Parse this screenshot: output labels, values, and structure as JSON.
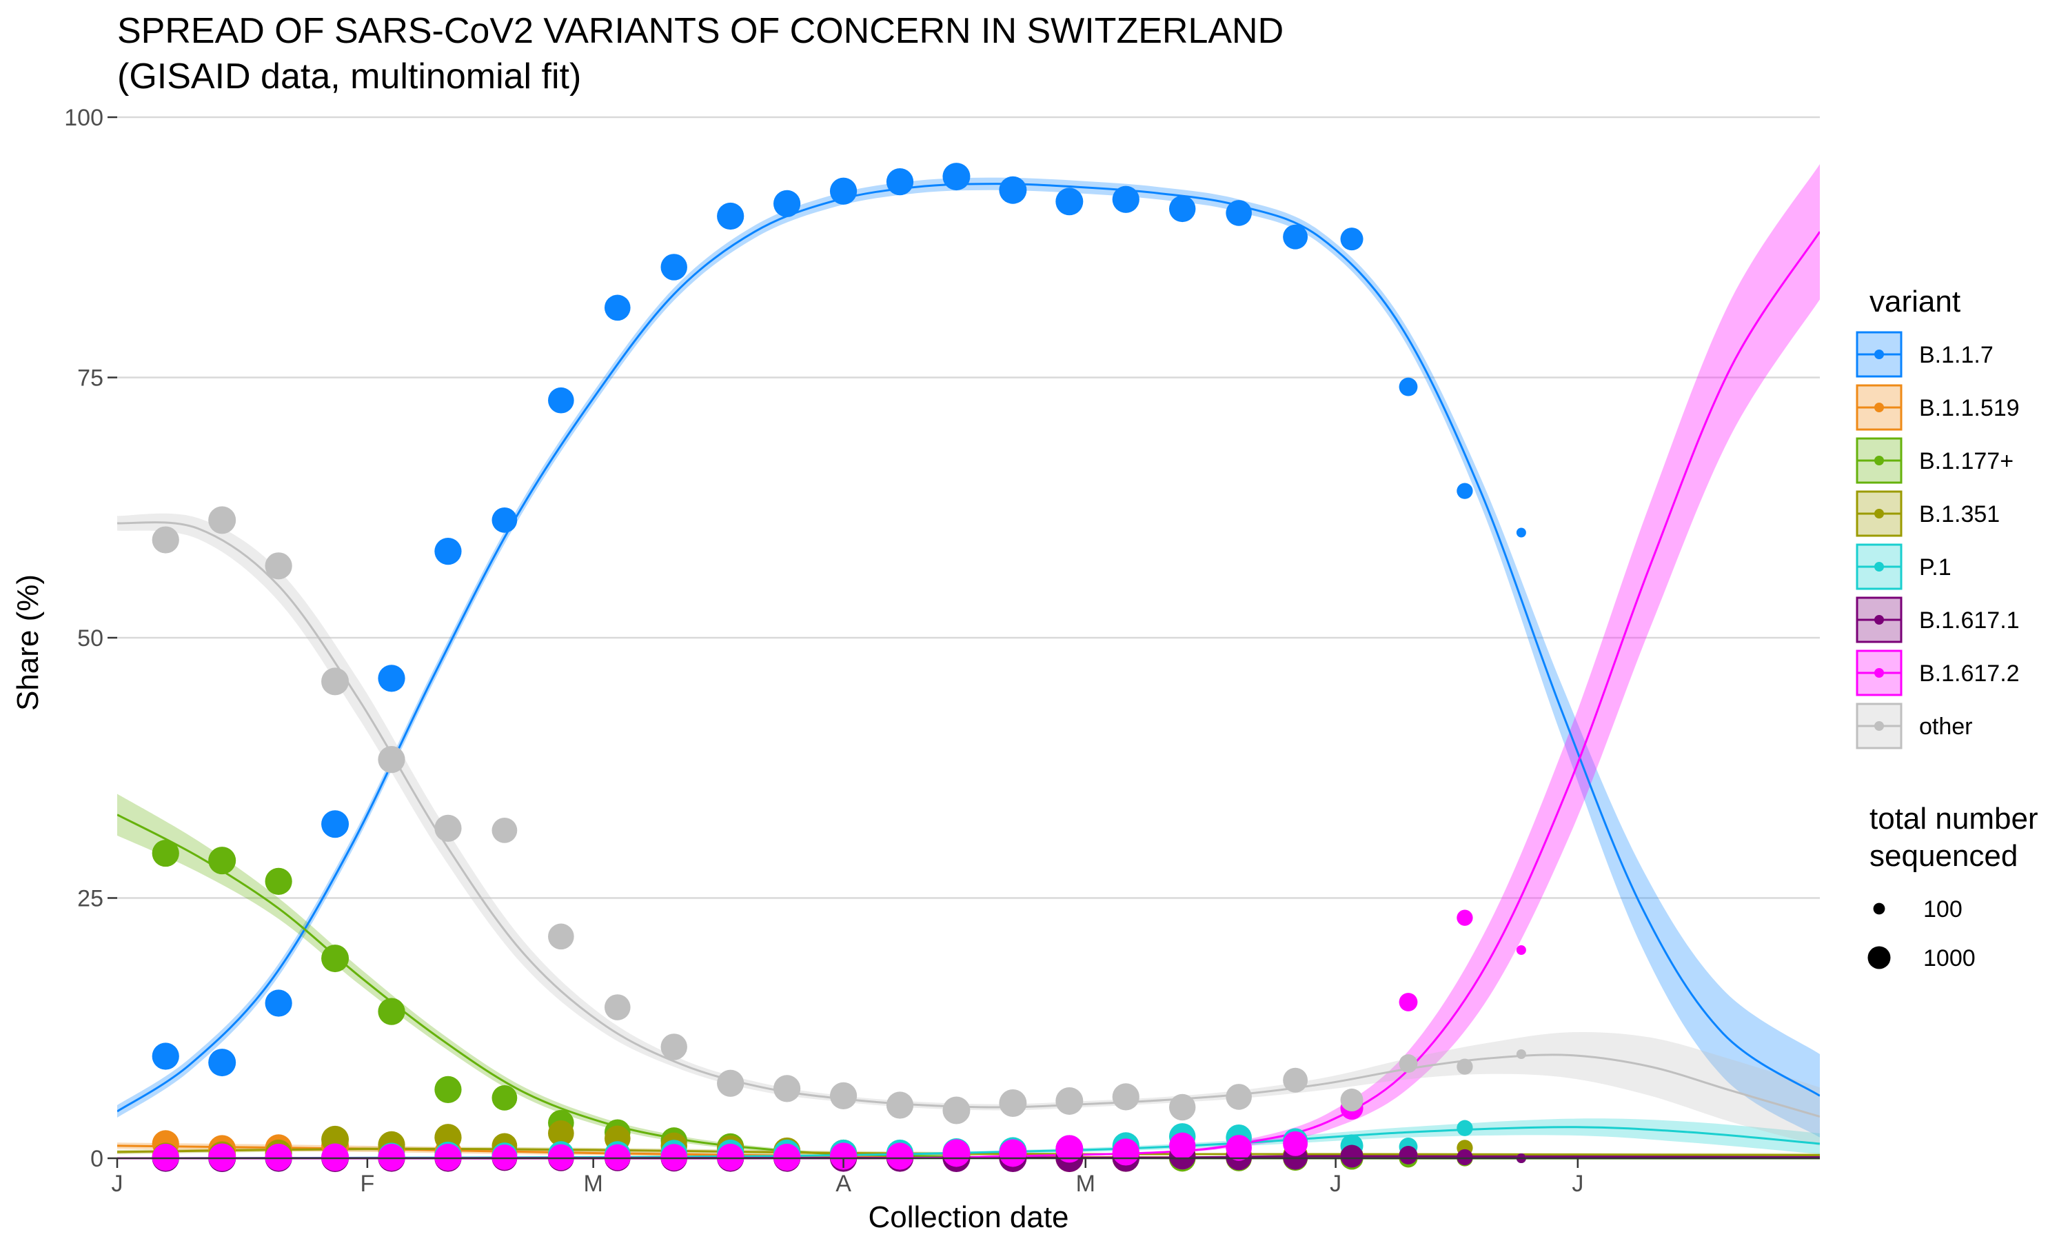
{
  "chart_data": {
    "type": "scatter",
    "title": "SPREAD OF SARS-CoV2 VARIANTS OF CONCERN IN SWITZERLAND",
    "subtitle": "(GISAID data, multinomial fit)",
    "xlabel": "Collection date",
    "ylabel": "Share (%)",
    "xlim": [
      "2021-01-01",
      "2021-07-31"
    ],
    "ylim": [
      0,
      100
    ],
    "x_ticks": [
      {
        "date": "2021-01-01",
        "label": "J"
      },
      {
        "date": "2021-02-01",
        "label": "F"
      },
      {
        "date": "2021-03-01",
        "label": "M"
      },
      {
        "date": "2021-04-01",
        "label": "A"
      },
      {
        "date": "2021-05-01",
        "label": "M"
      },
      {
        "date": "2021-06-01",
        "label": "J"
      },
      {
        "date": "2021-07-01",
        "label": "J"
      }
    ],
    "y_ticks": [
      0,
      25,
      50,
      75,
      100
    ],
    "grid": true,
    "legend_position": "right",
    "legend_title": "variant",
    "size_legend": {
      "title_lines": [
        "total number",
        "sequenced"
      ],
      "entries": [
        100,
        1000
      ]
    },
    "dates": [
      "2021-01-07",
      "2021-01-14",
      "2021-01-21",
      "2021-01-28",
      "2021-02-04",
      "2021-02-11",
      "2021-02-18",
      "2021-02-25",
      "2021-03-04",
      "2021-03-11",
      "2021-03-18",
      "2021-03-25",
      "2021-04-01",
      "2021-04-08",
      "2021-04-15",
      "2021-04-22",
      "2021-04-29",
      "2021-05-06",
      "2021-05-13",
      "2021-05-20",
      "2021-05-27",
      "2021-06-03",
      "2021-06-10",
      "2021-06-17",
      "2021-06-24"
    ],
    "point_sizes": [
      1700,
      1800,
      1700,
      1800,
      1700,
      1700,
      1400,
      1500,
      1500,
      1600,
      1700,
      1700,
      1700,
      1700,
      1800,
      1800,
      1800,
      1700,
      1600,
      1500,
      1300,
      1000,
      500,
      300,
      80
    ],
    "series": [
      {
        "name": "B.1.1.7",
        "color": "#0a84ff",
        "values": [
          9.8,
          9.2,
          14.9,
          32.1,
          46.1,
          58.3,
          61.3,
          72.8,
          81.7,
          85.6,
          90.5,
          91.7,
          92.9,
          93.8,
          94.3,
          93,
          91.9,
          92.1,
          91.2,
          90.8,
          88.5,
          88.3,
          74.1,
          64.1,
          60.1
        ],
        "fit": [
          [
            "2021-01-01",
            4.5
          ],
          [
            "2021-01-10",
            9
          ],
          [
            "2021-01-20",
            17
          ],
          [
            "2021-01-30",
            30
          ],
          [
            "2021-02-09",
            46
          ],
          [
            "2021-02-19",
            61
          ],
          [
            "2021-03-01",
            73
          ],
          [
            "2021-03-11",
            83
          ],
          [
            "2021-03-21",
            89
          ],
          [
            "2021-03-31",
            92
          ],
          [
            "2021-04-10",
            93.3
          ],
          [
            "2021-04-20",
            93.6
          ],
          [
            "2021-04-30",
            93.3
          ],
          [
            "2021-05-10",
            92.7
          ],
          [
            "2021-05-20",
            91.5
          ],
          [
            "2021-05-30",
            88.5
          ],
          [
            "2021-06-09",
            80
          ],
          [
            "2021-06-19",
            64
          ],
          [
            "2021-06-29",
            43
          ],
          [
            "2021-07-09",
            24
          ],
          [
            "2021-07-19",
            12
          ],
          [
            "2021-07-31",
            6
          ]
        ],
        "band": [
          0.6,
          0.6,
          0.6,
          0.6,
          0.6,
          0.6,
          0.6,
          0.6,
          0.6,
          0.6,
          0.6,
          0.6,
          0.6,
          0.6,
          0.6,
          0.6,
          0.8,
          1.3,
          2.5,
          3.8,
          4.2,
          4.0
        ]
      },
      {
        "name": "B.1.1.519",
        "color": "#ef8a17",
        "values": [
          1.4,
          0.9,
          1,
          1.2,
          0.8,
          0.6,
          0.4,
          0.3,
          0.2,
          0.2,
          0.1,
          0.1,
          0.1,
          0.1,
          0.1,
          0.1,
          0,
          0,
          0,
          0,
          0,
          0,
          0,
          0,
          0
        ],
        "fit": [
          [
            "2021-01-01",
            1.2
          ],
          [
            "2021-02-01",
            0.9
          ],
          [
            "2021-03-01",
            0.5
          ],
          [
            "2021-04-01",
            0.2
          ],
          [
            "2021-05-01",
            0.1
          ],
          [
            "2021-06-01",
            0.05
          ],
          [
            "2021-07-31",
            0
          ]
        ],
        "band": [
          0.3,
          0.3,
          0.2,
          0.1,
          0.1,
          0.1,
          0.1
        ]
      },
      {
        "name": "B.1.177+",
        "color": "#66b20c",
        "values": [
          29.3,
          28.6,
          26.6,
          19.2,
          14.1,
          6.6,
          5.8,
          3.4,
          2.5,
          1.7,
          1.1,
          0.6,
          0.3,
          0.2,
          0.1,
          0.1,
          0.1,
          0,
          0,
          0,
          0,
          0,
          0,
          0,
          0
        ],
        "fit": [
          [
            "2021-01-01",
            33
          ],
          [
            "2021-01-11",
            29
          ],
          [
            "2021-01-21",
            24
          ],
          [
            "2021-01-31",
            17.5
          ],
          [
            "2021-02-10",
            11.5
          ],
          [
            "2021-02-20",
            6.5
          ],
          [
            "2021-03-02",
            3.5
          ],
          [
            "2021-03-12",
            1.8
          ],
          [
            "2021-03-22",
            0.9
          ],
          [
            "2021-04-01",
            0.4
          ],
          [
            "2021-04-21",
            0.1
          ],
          [
            "2021-05-21",
            0
          ],
          [
            "2021-07-31",
            0
          ]
        ],
        "band": [
          2,
          1.5,
          1,
          0.8,
          0.6,
          0.5,
          0.4,
          0.3,
          0.2,
          0.1,
          0.1,
          0,
          0
        ]
      },
      {
        "name": "B.1.351",
        "color": "#9b9b00",
        "values": [
          0.2,
          0.3,
          0.5,
          1.8,
          1.3,
          2,
          1.2,
          2.4,
          1.9,
          1.2,
          0.9,
          0.7,
          0.5,
          0.4,
          0.3,
          0.3,
          0.3,
          0.3,
          0.3,
          0.3,
          0.3,
          0.3,
          0.3,
          1,
          0
        ],
        "fit": [
          [
            "2021-01-01",
            0.6
          ],
          [
            "2021-02-01",
            0.9
          ],
          [
            "2021-03-01",
            0.8
          ],
          [
            "2021-04-01",
            0.5
          ],
          [
            "2021-05-01",
            0.4
          ],
          [
            "2021-06-01",
            0.4
          ],
          [
            "2021-07-31",
            0.3
          ]
        ],
        "band": [
          0.2,
          0.2,
          0.2,
          0.2,
          0.1,
          0.1,
          0.2
        ]
      },
      {
        "name": "P.1",
        "color": "#19cfcf",
        "values": [
          0,
          0,
          0,
          0.1,
          0.2,
          0.3,
          0.3,
          0.4,
          0.4,
          0.5,
          0.5,
          0.5,
          0.5,
          0.5,
          0.6,
          0.7,
          0.9,
          1.2,
          2.1,
          2,
          1.7,
          1.2,
          1.1,
          2.9,
          0
        ],
        "fit": [
          [
            "2021-01-01",
            0
          ],
          [
            "2021-03-01",
            0.1
          ],
          [
            "2021-04-01",
            0.3
          ],
          [
            "2021-05-01",
            0.8
          ],
          [
            "2021-05-21",
            1.5
          ],
          [
            "2021-06-10",
            2.5
          ],
          [
            "2021-06-30",
            3
          ],
          [
            "2021-07-15",
            2.5
          ],
          [
            "2021-07-31",
            1.4
          ]
        ],
        "band": [
          0,
          0,
          0.1,
          0.2,
          0.3,
          0.5,
          0.8,
          1,
          1
        ]
      },
      {
        "name": "B.1.617.1",
        "color": "#7a0177",
        "values": [
          0,
          0,
          0,
          0,
          0,
          0,
          0,
          0,
          0,
          0,
          0,
          0,
          0,
          0,
          0,
          0,
          0,
          0,
          0.2,
          0.1,
          0.1,
          0.2,
          0.3,
          0.1,
          0
        ],
        "fit": [
          [
            "2021-01-01",
            0
          ],
          [
            "2021-05-01",
            0.05
          ],
          [
            "2021-06-01",
            0.2
          ],
          [
            "2021-07-31",
            0.1
          ]
        ],
        "band": [
          0,
          0,
          0.1,
          0.1
        ]
      },
      {
        "name": "B.1.617.2",
        "color": "#ff00ff",
        "values": [
          0.1,
          0.1,
          0.1,
          0.1,
          0.1,
          0.1,
          0.1,
          0.1,
          0.1,
          0.1,
          0.1,
          0.1,
          0.2,
          0.2,
          0.5,
          0.5,
          0.9,
          0.6,
          1.2,
          1,
          1.4,
          4.8,
          15,
          23.1,
          20
        ],
        "fit": [
          [
            "2021-01-01",
            0
          ],
          [
            "2021-04-01",
            0
          ],
          [
            "2021-04-21",
            0.2
          ],
          [
            "2021-05-11",
            0.6
          ],
          [
            "2021-05-21",
            1.5
          ],
          [
            "2021-05-31",
            3.5
          ],
          [
            "2021-06-10",
            8.5
          ],
          [
            "2021-06-20",
            19
          ],
          [
            "2021-06-30",
            36
          ],
          [
            "2021-07-10",
            57
          ],
          [
            "2021-07-20",
            76
          ],
          [
            "2021-07-31",
            89
          ]
        ],
        "band": [
          0,
          0,
          0,
          0.1,
          0.3,
          0.8,
          1.8,
          3.5,
          5,
          6,
          6.5,
          6.5
        ]
      },
      {
        "name": "other",
        "color": "#bfbfbf",
        "values": [
          59.4,
          61.3,
          56.9,
          45.8,
          38.3,
          31.7,
          31.5,
          21.3,
          14.5,
          10.7,
          7.2,
          6.7,
          6,
          5.1,
          4.6,
          5.3,
          5.5,
          5.9,
          4.9,
          5.9,
          7.5,
          5.6,
          9.1,
          8.8,
          10
        ],
        "fit": [
          [
            "2021-01-01",
            61
          ],
          [
            "2021-01-11",
            60.5
          ],
          [
            "2021-01-21",
            55
          ],
          [
            "2021-01-31",
            44
          ],
          [
            "2021-02-10",
            31
          ],
          [
            "2021-02-20",
            20
          ],
          [
            "2021-03-02",
            13
          ],
          [
            "2021-03-12",
            9
          ],
          [
            "2021-03-22",
            6.8
          ],
          [
            "2021-04-01",
            5.7
          ],
          [
            "2021-04-11",
            5.1
          ],
          [
            "2021-04-21",
            4.9
          ],
          [
            "2021-05-01",
            5.2
          ],
          [
            "2021-05-11",
            5.6
          ],
          [
            "2021-05-21",
            6.2
          ],
          [
            "2021-05-31",
            7.2
          ],
          [
            "2021-06-10",
            8.6
          ],
          [
            "2021-06-20",
            9.6
          ],
          [
            "2021-06-30",
            9.9
          ],
          [
            "2021-07-10",
            8.8
          ],
          [
            "2021-07-20",
            6.5
          ],
          [
            "2021-07-31",
            4
          ]
        ],
        "band": [
          0.7,
          1,
          1.5,
          1.8,
          1.6,
          1.2,
          0.8,
          0.5,
          0.4,
          0.3,
          0.3,
          0.3,
          0.3,
          0.3,
          0.4,
          0.6,
          1,
          1.5,
          2.2,
          2.8,
          3,
          2.8
        ]
      }
    ]
  }
}
